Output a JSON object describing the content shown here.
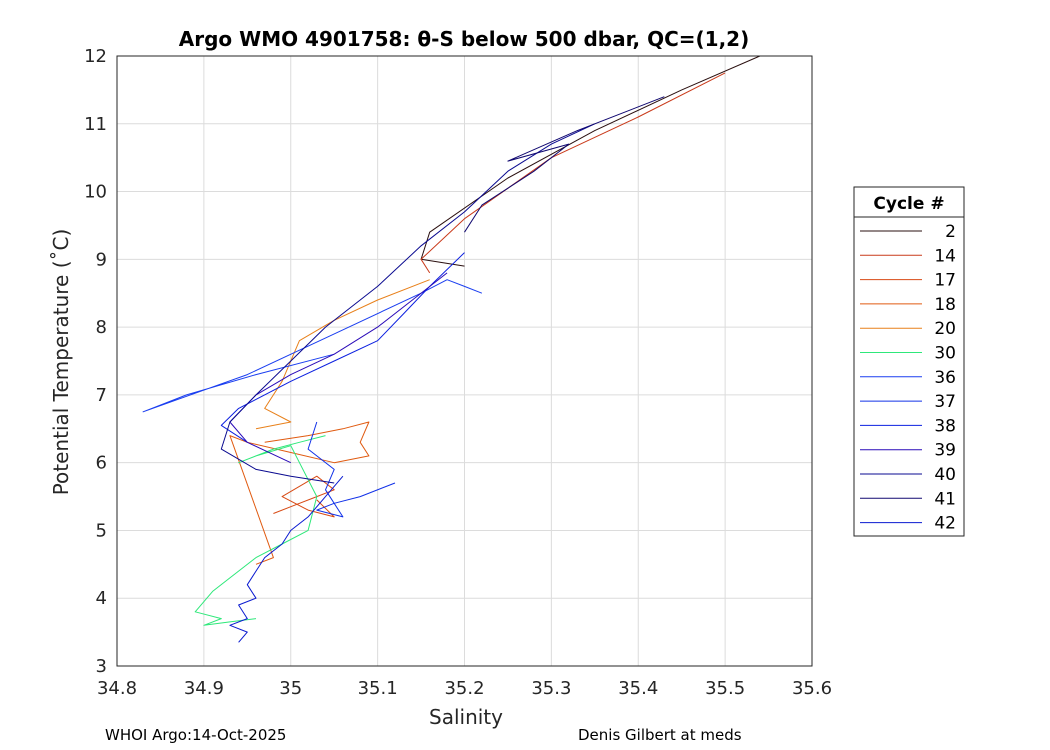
{
  "chart_data": {
    "type": "line",
    "title": "Argo WMO 4901758: θ-S below 500 dbar,  QC=(1,2)",
    "xlabel": "Salinity",
    "ylabel": "Potential Temperature (˚C)",
    "xlim": [
      34.8,
      35.6
    ],
    "ylim": [
      3,
      12
    ],
    "xticks": [
      "34.8",
      "34.9",
      "35",
      "35.1",
      "35.2",
      "35.3",
      "35.4",
      "35.5",
      "35.6"
    ],
    "yticks": [
      "3",
      "4",
      "5",
      "6",
      "7",
      "8",
      "9",
      "10",
      "11",
      "12"
    ],
    "grid": true,
    "legend_position": "right",
    "legend_title": "Cycle #",
    "series": [
      {
        "name": "2",
        "color": "#2a0f0f",
        "x": [
          35.54,
          35.45,
          35.35,
          35.25,
          35.16,
          35.15,
          35.2
        ],
        "y": [
          12.0,
          11.5,
          10.9,
          10.2,
          9.4,
          9.0,
          8.9
        ]
      },
      {
        "name": "14",
        "color": "#c93a1a",
        "x": [
          35.5,
          35.4,
          35.3,
          35.2,
          35.15,
          35.16
        ],
        "y": [
          11.75,
          11.1,
          10.5,
          9.6,
          9.0,
          8.8
        ]
      },
      {
        "name": "17",
        "color": "#d84a14",
        "x": [
          34.98,
          35.0,
          35.03,
          35.05,
          35.04,
          35.03,
          34.99,
          35.02,
          35.05,
          35.03
        ],
        "y": [
          5.25,
          5.35,
          5.5,
          5.6,
          5.7,
          5.8,
          5.5,
          5.3,
          5.2,
          5.45
        ]
      },
      {
        "name": "18",
        "color": "#e05a10",
        "x": [
          34.97,
          35.02,
          35.06,
          35.09,
          35.08,
          35.09,
          35.05,
          35.0,
          34.95,
          34.93,
          34.98,
          34.96
        ],
        "y": [
          6.3,
          6.4,
          6.5,
          6.6,
          6.3,
          6.1,
          6.0,
          6.15,
          6.3,
          6.4,
          4.6,
          4.5
        ]
      },
      {
        "name": "20",
        "color": "#e8801a",
        "x": [
          35.16,
          35.1,
          35.05,
          35.01,
          34.99,
          34.97,
          35.0,
          34.96
        ],
        "y": [
          8.7,
          8.4,
          8.1,
          7.8,
          7.2,
          6.8,
          6.6,
          6.5
        ]
      },
      {
        "name": "30",
        "color": "#2ee87a",
        "x": [
          35.04,
          35.01,
          34.98,
          34.94,
          34.96,
          35.0,
          35.03,
          35.02,
          34.99,
          34.96,
          34.93,
          34.91,
          34.89,
          34.92,
          34.9,
          34.93,
          34.96
        ],
        "y": [
          6.4,
          6.3,
          6.2,
          6.0,
          6.1,
          6.25,
          5.5,
          5.0,
          4.8,
          4.6,
          4.3,
          4.1,
          3.8,
          3.7,
          3.6,
          3.65,
          3.7
        ]
      },
      {
        "name": "36",
        "color": "#1a3ef0",
        "x": [
          35.05,
          34.96,
          34.88,
          34.83,
          34.95,
          35.05,
          35.15,
          35.18,
          35.2,
          35.22
        ],
        "y": [
          7.6,
          7.3,
          7.0,
          6.75,
          7.3,
          7.9,
          8.5,
          8.7,
          8.6,
          8.5
        ]
      },
      {
        "name": "37",
        "color": "#1030e8",
        "x": [
          35.12,
          35.08,
          35.05,
          35.03,
          35.06,
          35.04,
          35.05,
          35.02,
          35.03
        ],
        "y": [
          5.7,
          5.5,
          5.4,
          5.3,
          5.2,
          5.6,
          5.9,
          6.2,
          6.6
        ]
      },
      {
        "name": "38",
        "color": "#0c20e0",
        "x": [
          35.2,
          35.16,
          35.13,
          35.1,
          35.05,
          35.0,
          34.94,
          34.92,
          34.95
        ],
        "y": [
          9.1,
          8.6,
          8.2,
          7.8,
          7.5,
          7.2,
          6.8,
          6.55,
          6.3
        ]
      },
      {
        "name": "39",
        "color": "#2a0ab8",
        "x": [
          35.18,
          35.14,
          35.1,
          35.05,
          35.0,
          34.96,
          34.93,
          34.95,
          35.0
        ],
        "y": [
          8.8,
          8.4,
          8.0,
          7.6,
          7.3,
          7.0,
          6.6,
          6.3,
          6.0
        ]
      },
      {
        "name": "40",
        "color": "#0a0a90",
        "x": [
          35.35,
          35.3,
          35.25,
          35.2,
          35.15,
          35.1,
          35.04,
          35.0,
          34.96,
          34.93,
          34.92,
          34.96,
          35.0,
          35.05
        ],
        "y": [
          11.0,
          10.7,
          10.3,
          9.7,
          9.2,
          8.6,
          8.0,
          7.5,
          7.0,
          6.6,
          6.2,
          5.9,
          5.8,
          5.7
        ]
      },
      {
        "name": "41",
        "color": "#100870",
        "x": [
          35.43,
          35.33,
          35.25,
          35.32,
          35.28,
          35.22,
          35.2
        ],
        "y": [
          11.4,
          10.9,
          10.45,
          10.7,
          10.3,
          9.8,
          9.4
        ]
      },
      {
        "name": "42",
        "color": "#0a1ad0",
        "x": [
          35.06,
          35.04,
          35.02,
          35.0,
          34.99,
          34.97,
          34.96,
          34.95,
          34.96,
          34.94,
          34.95,
          34.93,
          34.95,
          34.94
        ],
        "y": [
          5.8,
          5.5,
          5.2,
          5.0,
          4.8,
          4.6,
          4.4,
          4.2,
          4.0,
          3.9,
          3.7,
          3.6,
          3.5,
          3.35
        ]
      }
    ]
  },
  "footer": {
    "left": "WHOI Argo:14-Oct-2025",
    "right": "Denis Gilbert at meds"
  }
}
